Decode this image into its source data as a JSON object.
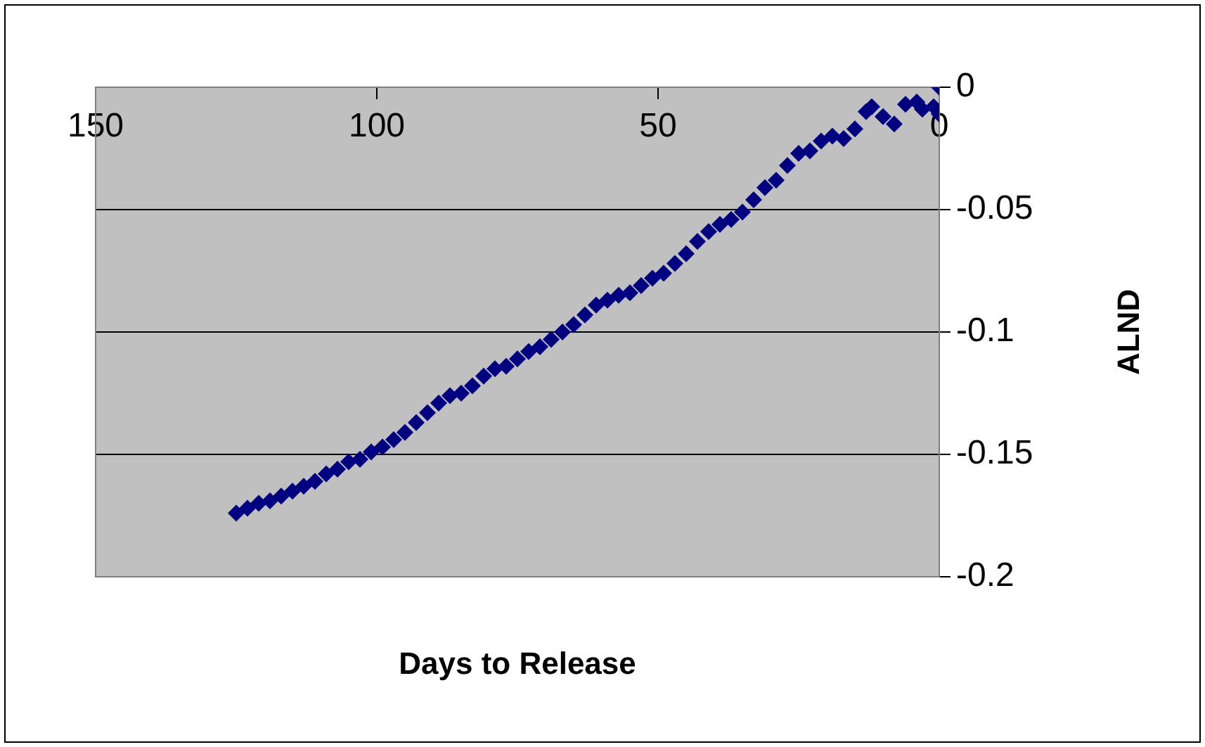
{
  "chart_data": {
    "type": "scatter",
    "xlabel": "Days to Release",
    "ylabel": "ALND",
    "x": [
      125,
      123,
      121,
      119,
      117,
      115,
      113,
      111,
      109,
      107,
      105,
      103,
      101,
      99,
      97,
      95,
      93,
      91,
      89,
      87,
      85,
      83,
      81,
      79,
      77,
      75,
      73,
      71,
      69,
      67,
      65,
      63,
      61,
      59,
      57,
      55,
      53,
      51,
      49,
      47,
      45,
      43,
      41,
      39,
      37,
      35,
      33,
      31,
      29,
      27,
      25,
      23,
      21,
      19,
      17,
      15,
      13,
      12,
      10,
      8,
      6,
      4,
      3,
      1,
      0,
      0
    ],
    "series": [
      {
        "color": "#000080",
        "values": [
          -0.174,
          -0.172,
          -0.17,
          -0.169,
          -0.167,
          -0.165,
          -0.163,
          -0.161,
          -0.158,
          -0.156,
          -0.153,
          -0.152,
          -0.149,
          -0.147,
          -0.144,
          -0.141,
          -0.137,
          -0.133,
          -0.129,
          -0.126,
          -0.125,
          -0.122,
          -0.118,
          -0.115,
          -0.114,
          -0.111,
          -0.108,
          -0.106,
          -0.103,
          -0.1,
          -0.097,
          -0.093,
          -0.089,
          -0.087,
          -0.085,
          -0.084,
          -0.081,
          -0.078,
          -0.076,
          -0.072,
          -0.068,
          -0.063,
          -0.059,
          -0.056,
          -0.054,
          -0.051,
          -0.046,
          -0.041,
          -0.038,
          -0.032,
          -0.027,
          -0.026,
          -0.022,
          -0.02,
          -0.021,
          -0.017,
          -0.01,
          -0.008,
          -0.012,
          -0.015,
          -0.007,
          -0.006,
          -0.009,
          -0.008,
          -0.011,
          0
        ]
      }
    ],
    "xlim": [
      150,
      0
    ],
    "xticks": [
      150,
      100,
      50,
      0
    ],
    "ylim": [
      -0.2,
      0
    ],
    "yticks": [
      -0.2,
      -0.15,
      -0.1,
      -0.05,
      0
    ],
    "grid": "y",
    "legend": false,
    "marker": "diamond"
  }
}
